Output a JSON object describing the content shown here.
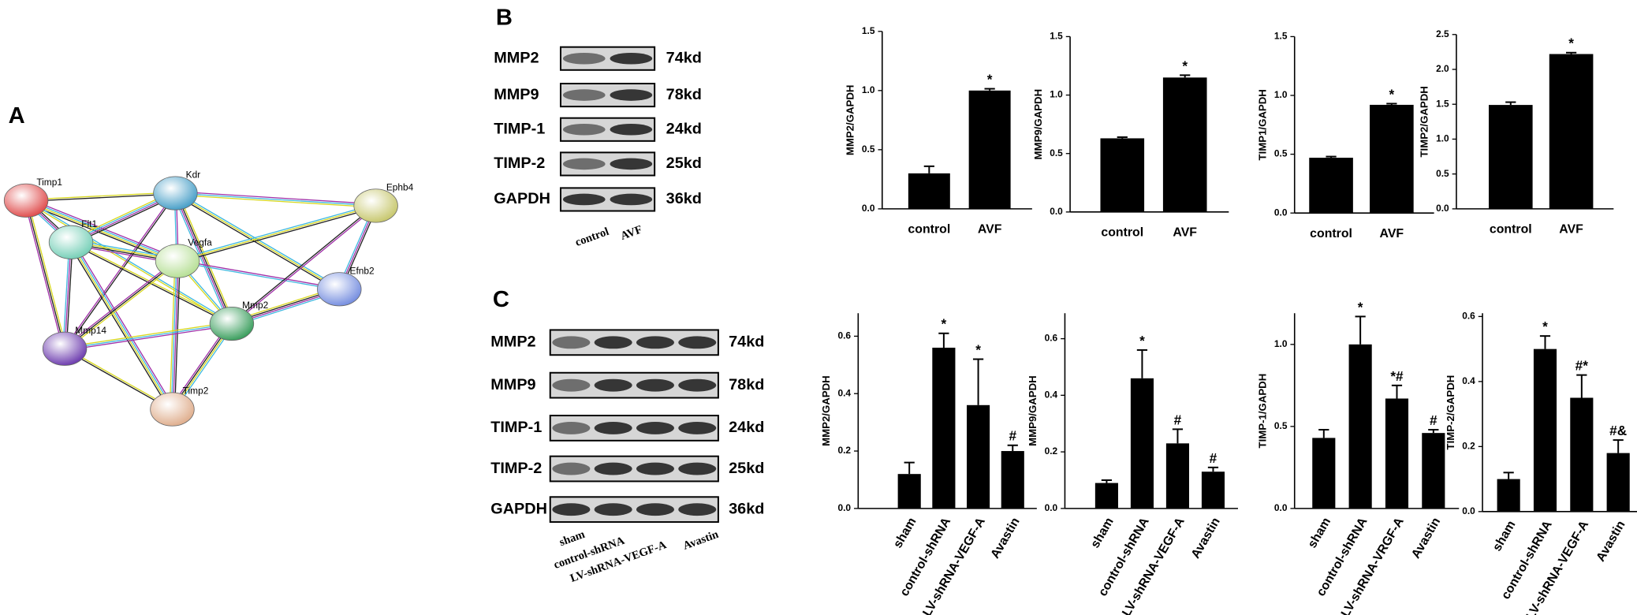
{
  "panels": {
    "a": "A",
    "b": "B",
    "c": "C"
  },
  "network": {
    "nodes": [
      "Timp1",
      "Kdr",
      "Ephb4",
      "Flt1",
      "Vegfa",
      "Efnb2",
      "Mmp2",
      "Mmp14",
      "Timp2"
    ]
  },
  "blots_b": {
    "rows": [
      [
        "MMP2",
        "74kd"
      ],
      [
        "MMP9",
        "78kd"
      ],
      [
        "TIMP-1",
        "24kd"
      ],
      [
        "TIMP-2",
        "25kd"
      ],
      [
        "GAPDH",
        "36kd"
      ]
    ],
    "lanes": [
      "control",
      "AVF"
    ]
  },
  "blots_c": {
    "rows": [
      [
        "MMP2",
        "74kd"
      ],
      [
        "MMP9",
        "78kd"
      ],
      [
        "TIMP-1",
        "24kd"
      ],
      [
        "TIMP-2",
        "25kd"
      ],
      [
        "GAPDH",
        "36kd"
      ]
    ],
    "lanes": [
      "sham",
      "control-shRNA",
      "LV-shRNA-VEGF-A",
      "Avastin"
    ]
  },
  "chart_data": [
    {
      "type": "bar",
      "y_label": "MMP2/GAPDH",
      "categories": [
        "control",
        "AVF"
      ],
      "values": [
        0.3,
        1.0
      ],
      "errors": [
        0.06,
        0.015
      ],
      "annotations": [
        null,
        "*"
      ],
      "color": "#000000",
      "ylim": [
        0,
        1.5
      ],
      "yticks": [
        {
          "value": 0,
          "label": "0.0"
        },
        0.5,
        {
          "value": 1,
          "label": "1.0"
        },
        1.5
      ]
    },
    {
      "type": "bar",
      "y_label": "MMP9/GAPDH",
      "categories": [
        "control",
        "AVF"
      ],
      "values": [
        0.63,
        1.15
      ],
      "errors": [
        0.01,
        0.02
      ],
      "annotations": [
        null,
        "*"
      ],
      "color": "#000000",
      "ylim": [
        0,
        1.5
      ],
      "yticks": [
        {
          "value": 0,
          "label": "0.0"
        },
        0.5,
        {
          "value": 1,
          "label": "1.0"
        },
        1.5
      ]
    },
    {
      "type": "bar",
      "y_label": "TIMP1/GAPDH",
      "categories": [
        "control",
        "AVF"
      ],
      "values": [
        0.47,
        0.92
      ],
      "errors": [
        0.01,
        0.01
      ],
      "annotations": [
        null,
        "*"
      ],
      "color": "#000000",
      "ylim": [
        0,
        1.5
      ],
      "yticks": [
        {
          "value": 0,
          "label": "0.0"
        },
        0.5,
        {
          "value": 1,
          "label": "1.0"
        },
        1.5
      ]
    },
    {
      "type": "bar",
      "y_label": "TIMP2/GAPDH",
      "categories": [
        "control",
        "AVF"
      ],
      "values": [
        1.49,
        2.22
      ],
      "errors": [
        0.04,
        0.02
      ],
      "annotations": [
        null,
        "*"
      ],
      "color": "#000000",
      "ylim": [
        0,
        2.5
      ],
      "yticks": [
        {
          "value": 0,
          "label": "0.0"
        },
        0.5,
        {
          "value": 1,
          "label": "1.0"
        },
        1.5,
        {
          "value": 2,
          "label": "2.0"
        },
        2.5
      ]
    },
    {
      "type": "bar",
      "y_label": "MMP2/GAPDH",
      "categories": [
        "sham",
        "control-shRNA",
        "LV-shRNA-VEGF-A",
        "Avastin"
      ],
      "values": [
        0.12,
        0.56,
        0.36,
        0.2
      ],
      "errors": [
        0.04,
        0.05,
        0.16,
        0.02
      ],
      "annotations": [
        null,
        "*",
        "*",
        "#"
      ],
      "color": "#000000",
      "ylim": [
        0,
        0.68
      ],
      "yticks": [
        {
          "value": 0,
          "label": "0.0"
        },
        0.2,
        0.4,
        0.6
      ]
    },
    {
      "type": "bar",
      "y_label": "MMP9/GAPDH",
      "categories": [
        "sham",
        "control-shRNA",
        "LV-shRNA-VEGF-A",
        "Avastin"
      ],
      "values": [
        0.09,
        0.46,
        0.23,
        0.13
      ],
      "errors": [
        0.01,
        0.1,
        0.05,
        0.015
      ],
      "annotations": [
        null,
        "*",
        "#",
        "#"
      ],
      "color": "#000000",
      "ylim": [
        0,
        0.69
      ],
      "yticks": [
        {
          "value": 0,
          "label": "0.0"
        },
        0.2,
        0.4,
        0.6
      ]
    },
    {
      "type": "bar",
      "y_label": "TIMP-1/GAPDH",
      "categories": [
        "sham",
        "control-shRNA",
        "LV-shRNA-VRGF-A",
        "Avastin"
      ],
      "values": [
        0.43,
        1.0,
        0.67,
        0.46
      ],
      "errors": [
        0.05,
        0.17,
        0.08,
        0.02
      ],
      "annotations": [
        null,
        "*",
        "*#",
        "#"
      ],
      "color": "#000000",
      "ylim": [
        0,
        1.19
      ],
      "yticks": [
        {
          "value": 0,
          "label": "0.0"
        },
        0.5,
        {
          "value": 1,
          "label": "1.0"
        }
      ]
    },
    {
      "type": "bar",
      "y_label": "TIMP-2/GAPDH",
      "categories": [
        "sham",
        "control-shRNA",
        "LV-shRNA-VEGF-A",
        "Avastin"
      ],
      "values": [
        0.1,
        0.5,
        0.35,
        0.18
      ],
      "errors": [
        0.02,
        0.04,
        0.07,
        0.04
      ],
      "annotations": [
        null,
        "*",
        "#*",
        "#&"
      ],
      "color": "#000000",
      "ylim": [
        0,
        0.61
      ],
      "yticks": [
        {
          "value": 0,
          "label": "0.0"
        },
        0.2,
        0.4,
        0.6
      ]
    }
  ]
}
